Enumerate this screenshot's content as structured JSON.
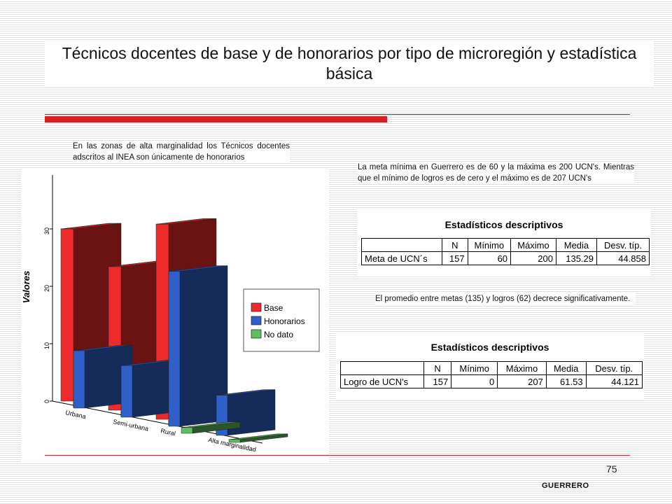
{
  "title": "Técnicos docentes de base y de honorarios por tipo de microregión y estadística básica",
  "note_left": "En las zonas de alta marginalidad los Técnicos docentes adscritos al INEA son únicamente de honorarios",
  "note_right": "La meta mínima en Guerrero es de 60 y la máxima es 200 UCN's. Mientras que el mínimo de logros es de cero y el máximo es de 207 UCN's",
  "note_mid": "El promedio entre metas (135) y logros (62) decrece significativamente.",
  "table1": {
    "title": "Estadísticos descriptivos",
    "headers": [
      "N",
      "Mínimo",
      "Máximo",
      "Media",
      "Desv. típ."
    ],
    "row_label": "Meta de UCN´s",
    "values": [
      "157",
      "60",
      "200",
      "135.29",
      "44.858"
    ]
  },
  "table2": {
    "title": "Estadísticos descriptivos",
    "headers": [
      "N",
      "Mínimo",
      "Máximo",
      "Media",
      "Desv. típ."
    ],
    "row_label": "Logro de UCN's",
    "values": [
      "157",
      "0",
      "207",
      "61.53",
      "44.121"
    ]
  },
  "page_number": "75",
  "footer": "GUERRERO",
  "chart_data": {
    "type": "bar",
    "ylabel": "Valores",
    "ylim": [
      0,
      40
    ],
    "yticks": [
      "0",
      "10",
      "20",
      "30"
    ],
    "categories": [
      "Urbana",
      "Semi-urbana",
      "Rural",
      "Alta marginalidad"
    ],
    "series": [
      {
        "name": "Base",
        "color": "#ee2b2b",
        "values": [
          30,
          25,
          34,
          0
        ]
      },
      {
        "name": "Honorarios",
        "color": "#2f5fc8",
        "values": [
          10,
          9,
          27,
          7
        ]
      },
      {
        "name": "No dato",
        "color": "#5fbf5f",
        "values": [
          0,
          0,
          1,
          0.5
        ]
      }
    ],
    "legend_position": "right",
    "grid": false
  }
}
